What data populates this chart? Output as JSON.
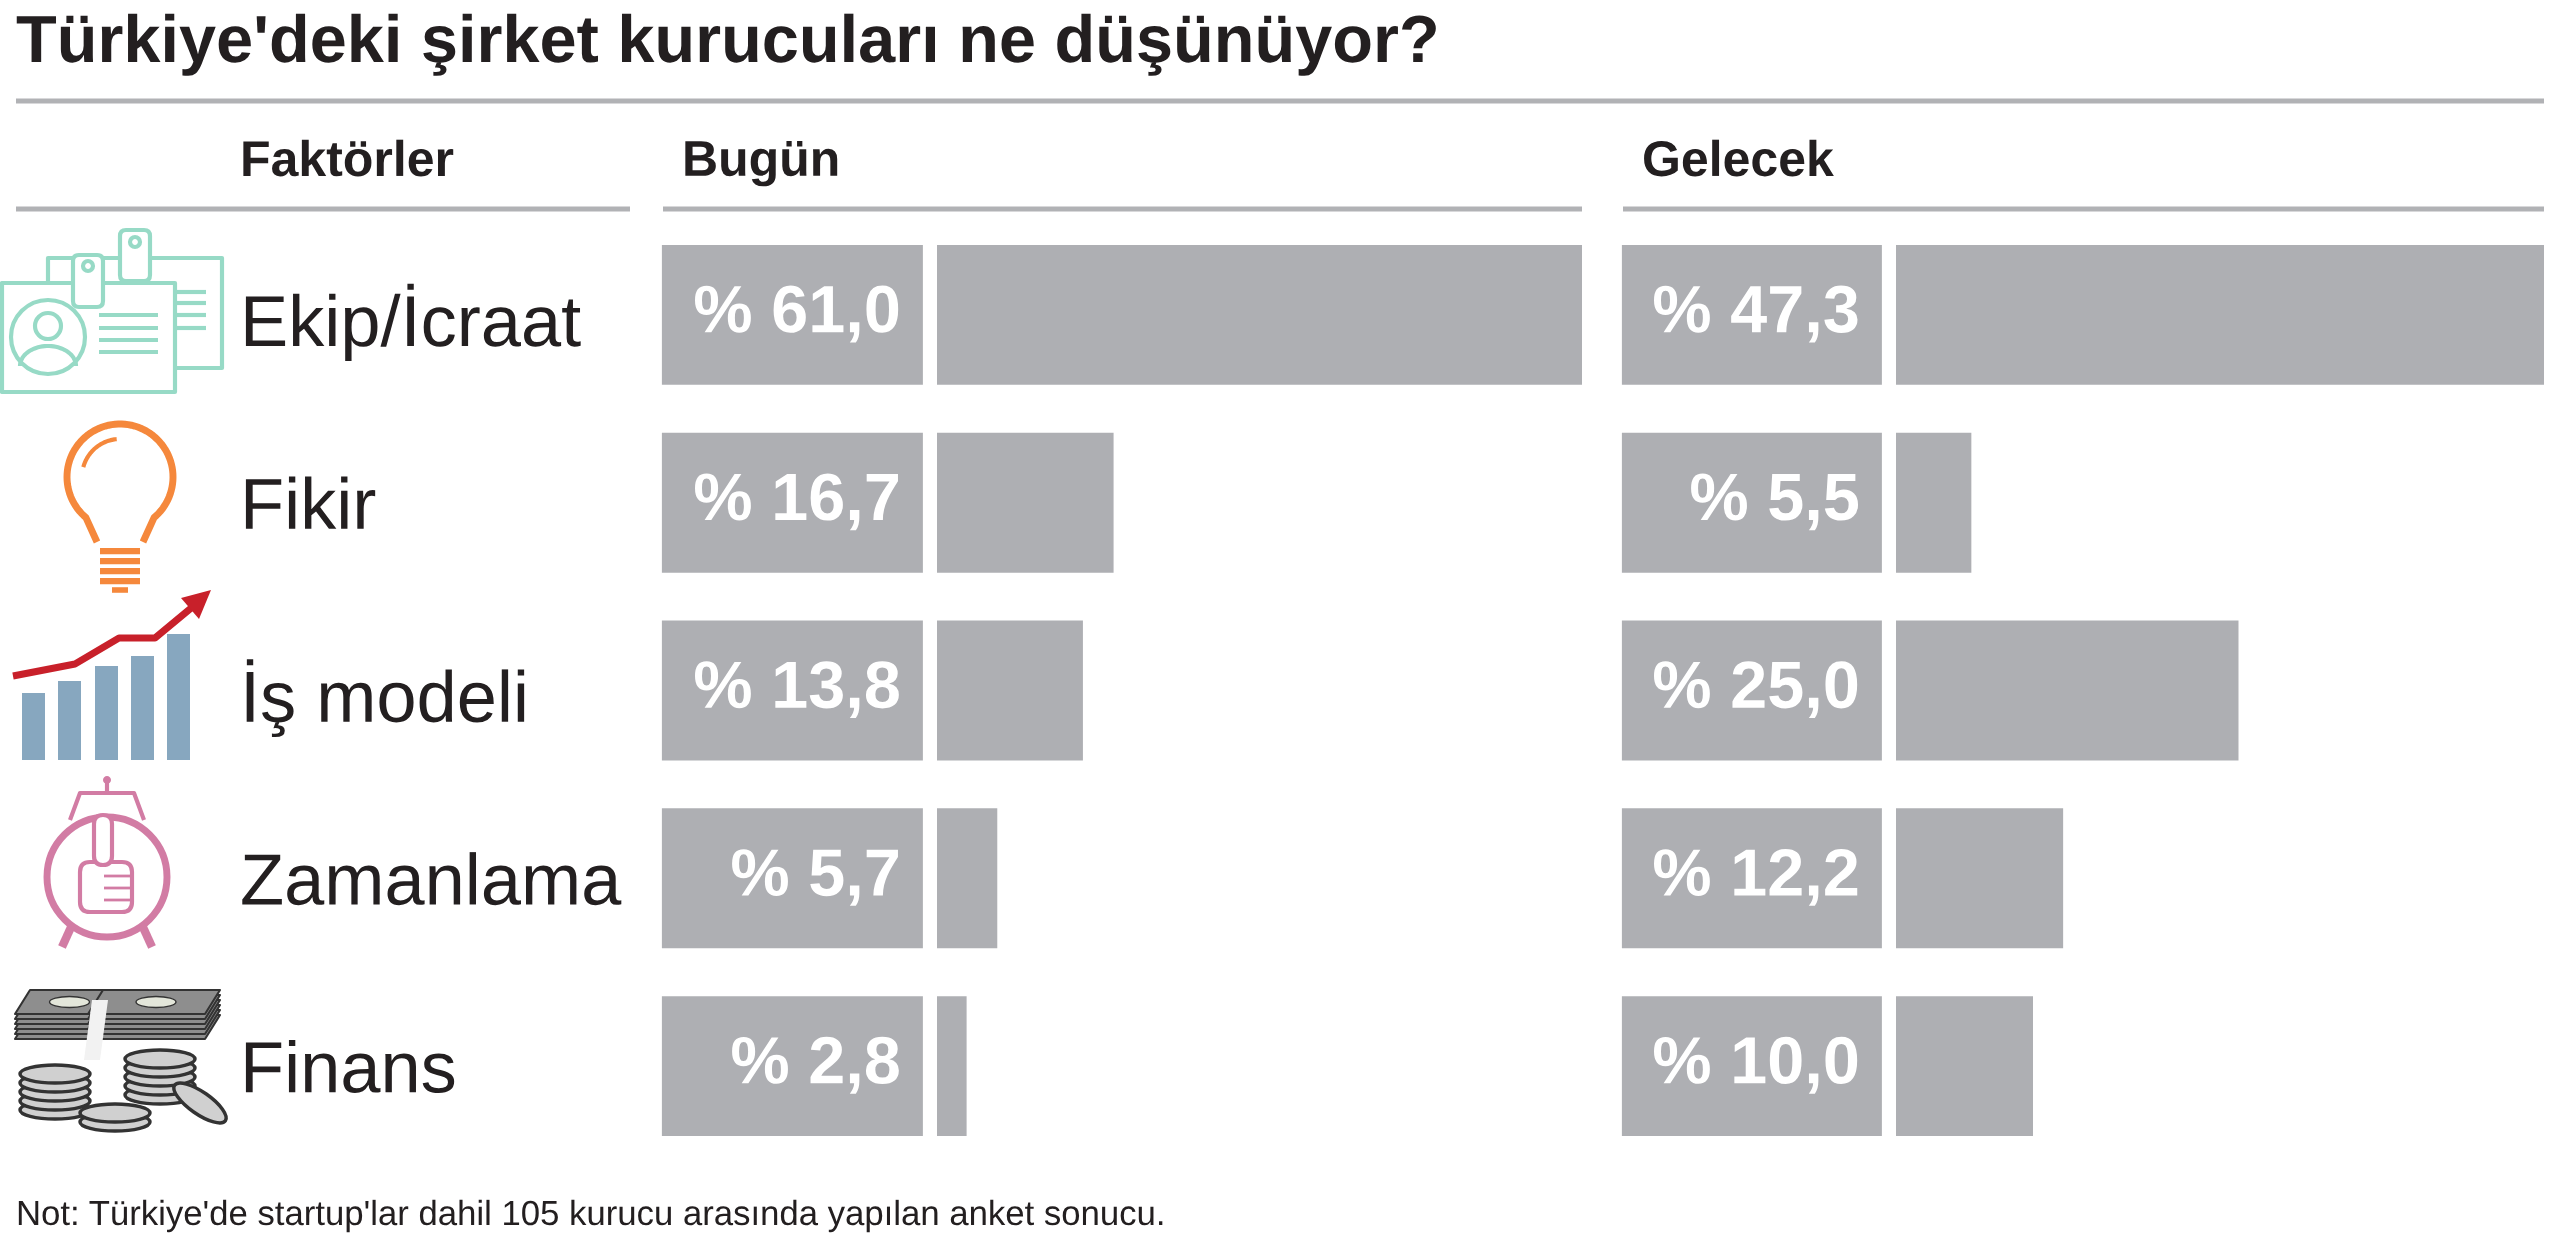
{
  "chart_data": [
    {
      "type": "bar",
      "orientation": "horizontal",
      "title": "Türkiye'deki şirket kurucuları ne düşünüyor?",
      "subtitle": "Bugün",
      "ylabel": "Faktörler",
      "categories": [
        "Ekip/İcraat",
        "Fikir",
        "İş modeli",
        "Zamanlama",
        "Finans"
      ],
      "values": [
        61.0,
        16.7,
        13.8,
        5.7,
        2.8
      ],
      "value_labels": [
        "% 61,0",
        "% 16,7",
        "% 13,8",
        "% 5,7",
        "% 2,8"
      ],
      "color": "#aeafb3",
      "tick_labels": "y",
      "annotations": [
        "Not: Türkiye'de startup'lar dahil 105 kurucu arasında yapılan anket sonucu."
      ]
    },
    {
      "type": "bar",
      "orientation": "horizontal",
      "subtitle": "Gelecek",
      "categories": [
        null,
        null,
        null,
        null,
        null
      ],
      "values": [
        47.3,
        5.5,
        25.0,
        12.2,
        10.0
      ],
      "value_labels": [
        "% 47,3",
        "% 5,5",
        "% 25,0",
        "% 12,2",
        "% 10,0"
      ],
      "color": "#aeafb3",
      "tick_labels": false
    }
  ]
}
